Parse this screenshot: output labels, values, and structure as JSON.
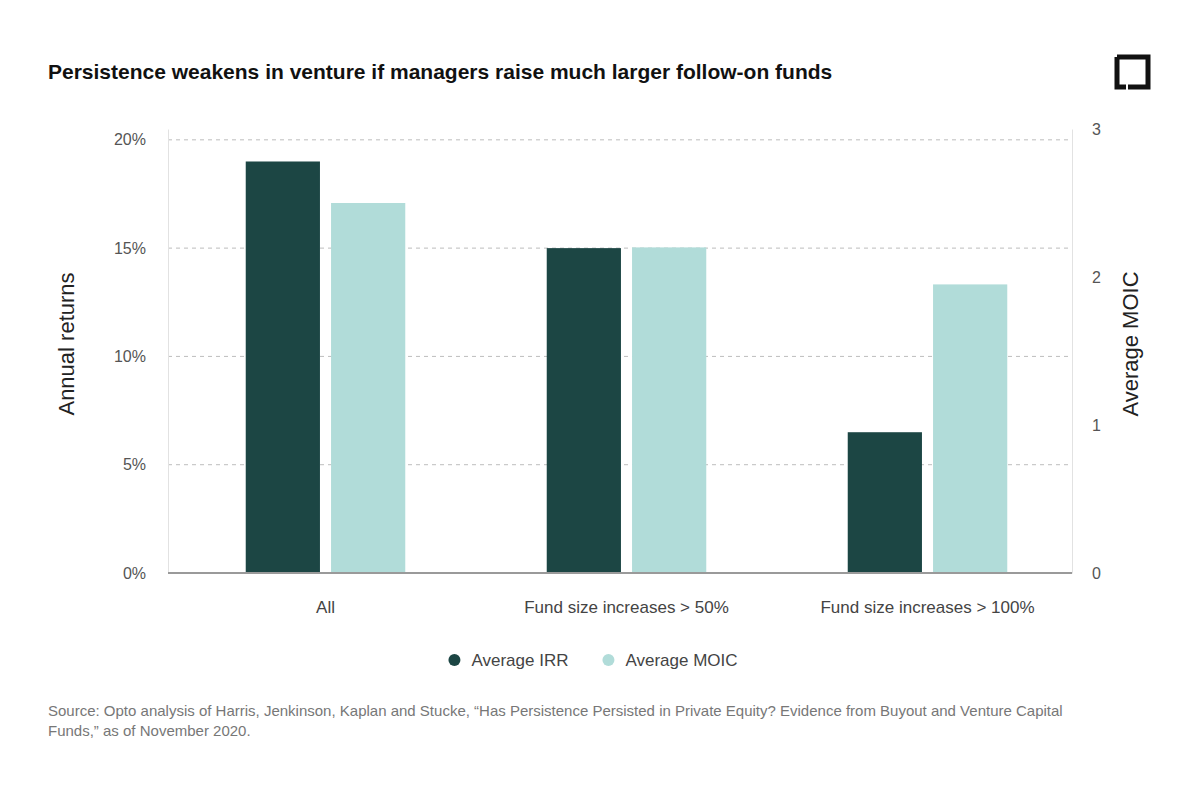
{
  "chart_data": {
    "type": "bar",
    "title": "Persistence weakens in venture if managers raise much larger follow-on funds",
    "ylabel": "Annual returns",
    "y2label": "Average MOIC",
    "source": "Source: Opto analysis of Harris, Jenkinson, Kaplan and Stucke, “Has Persistence Persisted in Private Equity? Evidence from Buyout and Venture Capital Funds,” as of November 2020.",
    "categories": [
      "All",
      "Fund size increases > 50%",
      "Fund size increases > 100%"
    ],
    "series": [
      {
        "name": "Average IRR",
        "color": "#1c4644",
        "values": [
          19,
          15,
          6.5
        ]
      },
      {
        "name": "Average MOIC",
        "color": "#b1dcd9",
        "values": [
          2.5,
          2.2,
          1.95
        ],
        "axis": "y2"
      }
    ],
    "ylim": [
      0,
      20.5
    ],
    "yticks": [
      {
        "value": 0,
        "label": "0%"
      },
      {
        "value": 5,
        "label": "5%"
      },
      {
        "value": 10,
        "label": "10%"
      },
      {
        "value": 15,
        "label": "15%"
      },
      {
        "value": 20,
        "label": "20%"
      }
    ],
    "y2lim": [
      0,
      3
    ],
    "y2ticks": [
      0,
      1,
      2,
      3
    ],
    "grid": true,
    "legend": "bottom"
  }
}
